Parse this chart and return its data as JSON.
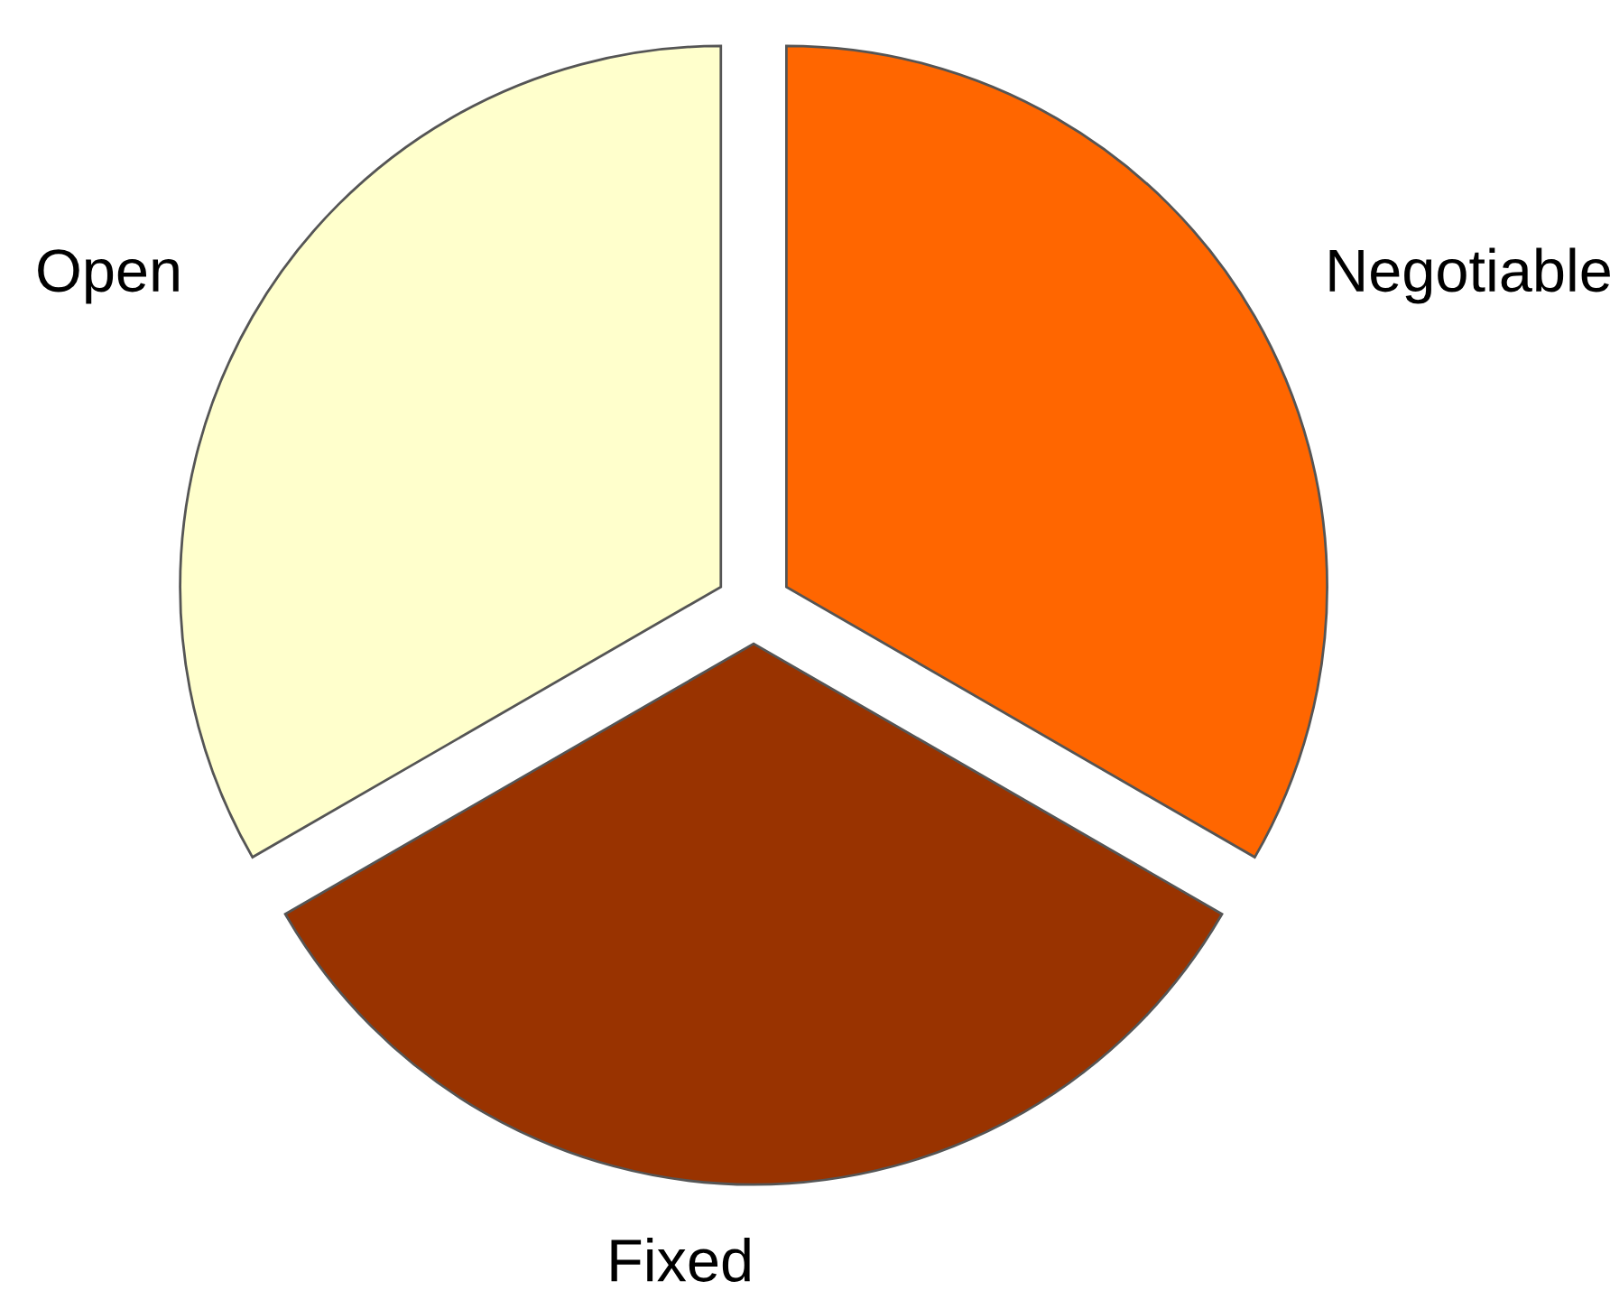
{
  "chart_data": {
    "type": "pie",
    "categories": [
      "Negotiable",
      "Fixed",
      "Open"
    ],
    "values": [
      33.33,
      33.34,
      33.33
    ],
    "colors": [
      "#ff6600",
      "#993300",
      "#ffffcc"
    ]
  }
}
